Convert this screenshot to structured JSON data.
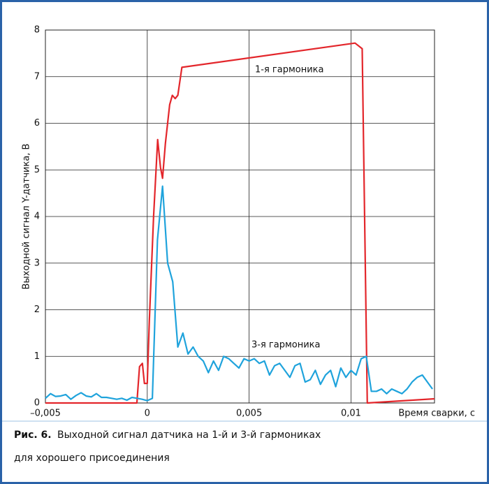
{
  "chart_data": {
    "type": "line",
    "x_label": "Время сварки, с",
    "y_label": "Выходной сигнал Y-датчика, В",
    "caption_label": "Рис. 6.",
    "caption_lines": [
      "Выходной сигнал датчика на 1-й и 3-й гармониках",
      "для хорошего присоединения"
    ],
    "xlim": [
      -0.005,
      0.0141
    ],
    "ylim": [
      0,
      8
    ],
    "xticks": [
      {
        "value": -0.005,
        "label": "–0,005"
      },
      0,
      {
        "value": 0.005,
        "label": "0,005"
      },
      {
        "value": 0.01,
        "label": "0,01"
      }
    ],
    "yticks": [
      0,
      1,
      2,
      3,
      4,
      5,
      6,
      7,
      8
    ],
    "grid": true,
    "series": [
      {
        "name": "1-я гармоника",
        "color": "#e3262b",
        "x": [
          -0.005,
          -0.00051,
          -0.00038,
          -0.00024,
          -0.00014,
          0,
          0.0001,
          0.00031,
          0.00051,
          0.00065,
          0.00075,
          0.00089,
          0.0011,
          0.00123,
          0.00137,
          0.0015,
          0.0017,
          0.0102,
          0.01055,
          0.0108,
          0.0141
        ],
        "values": [
          0,
          0,
          0.78,
          0.85,
          0.42,
          0.42,
          1.75,
          4.0,
          5.65,
          5.05,
          4.82,
          5.57,
          6.4,
          6.6,
          6.53,
          6.6,
          7.2,
          7.72,
          7.6,
          0,
          0.09
        ]
      },
      {
        "name": "3-я гармоника",
        "color": "#1fa3dc",
        "x": [
          -0.005,
          -0.00475,
          -0.0045,
          -0.00425,
          -0.004,
          -0.00375,
          -0.0035,
          -0.00325,
          -0.003,
          -0.00275,
          -0.0025,
          -0.00225,
          -0.002,
          -0.00175,
          -0.0015,
          -0.00125,
          -0.001,
          -0.00075,
          -0.0005,
          -0.00025,
          0,
          0.00025,
          0.0005,
          0.00075,
          0.001,
          0.00125,
          0.0015,
          0.00175,
          0.002,
          0.00225,
          0.0025,
          0.00275,
          0.003,
          0.00325,
          0.0035,
          0.00375,
          0.004,
          0.00425,
          0.0045,
          0.00475,
          0.005,
          0.00525,
          0.0055,
          0.00575,
          0.006,
          0.00625,
          0.0065,
          0.00675,
          0.007,
          0.00725,
          0.0075,
          0.00775,
          0.008,
          0.00825,
          0.0085,
          0.00875,
          0.009,
          0.00925,
          0.0095,
          0.00975,
          0.01,
          0.01025,
          0.0105,
          0.01075,
          0.011,
          0.01125,
          0.0115,
          0.01175,
          0.012,
          0.01225,
          0.0125,
          0.01275,
          0.013,
          0.01325,
          0.0135,
          0.01375,
          0.014
        ],
        "values": [
          0.1,
          0.2,
          0.14,
          0.15,
          0.18,
          0.08,
          0.16,
          0.22,
          0.15,
          0.13,
          0.2,
          0.12,
          0.12,
          0.1,
          0.08,
          0.1,
          0.06,
          0.12,
          0.1,
          0.08,
          0.05,
          0.1,
          3.5,
          4.65,
          3.0,
          2.6,
          1.2,
          1.5,
          1.05,
          1.2,
          1.0,
          0.9,
          0.65,
          0.9,
          0.7,
          1.0,
          0.95,
          0.85,
          0.75,
          0.95,
          0.9,
          0.95,
          0.85,
          0.9,
          0.6,
          0.8,
          0.85,
          0.7,
          0.55,
          0.8,
          0.85,
          0.45,
          0.5,
          0.7,
          0.4,
          0.6,
          0.7,
          0.35,
          0.75,
          0.55,
          0.7,
          0.6,
          0.95,
          1.0,
          0.25,
          0.25,
          0.3,
          0.2,
          0.3,
          0.25,
          0.2,
          0.3,
          0.45,
          0.55,
          0.6,
          0.45,
          0.3
        ]
      }
    ]
  }
}
